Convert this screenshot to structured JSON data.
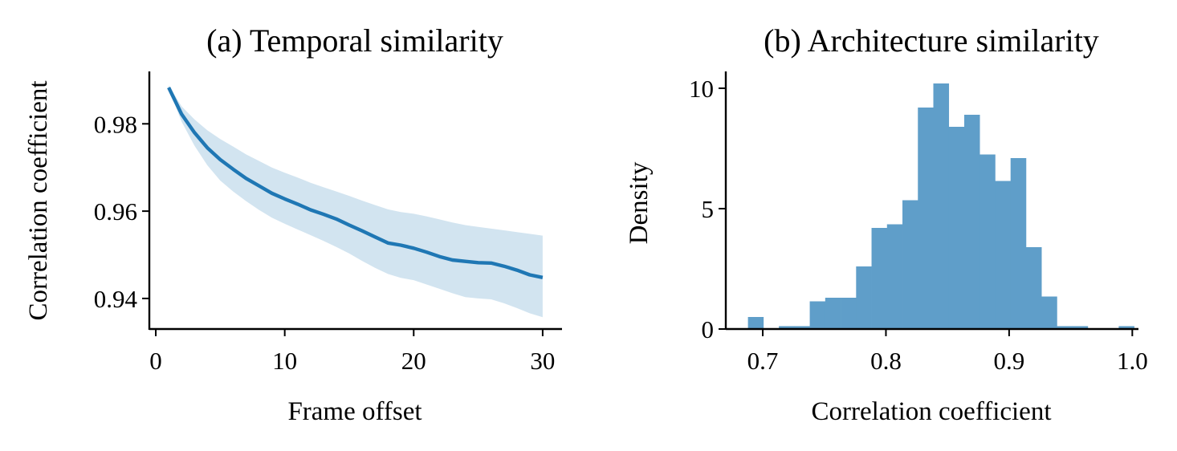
{
  "chart_data": [
    {
      "type": "line",
      "title": "(a) Temporal similarity",
      "xlabel": "Frame offset",
      "ylabel": "Correlation coefficient",
      "xlim": [
        -0.5,
        31.5
      ],
      "ylim": [
        0.933,
        0.992
      ],
      "xticks": [
        0,
        10,
        20,
        30
      ],
      "xtick_labels": [
        "0",
        "10",
        "20",
        "30"
      ],
      "yticks": [
        0.94,
        0.96,
        0.98
      ],
      "ytick_labels": [
        "0.94",
        "0.96",
        "0.98"
      ],
      "grid": false,
      "line_color": "#1f77b4",
      "band_color": "#1f77b4",
      "series": [
        {
          "name": "mean",
          "x": [
            1,
            2,
            3,
            4,
            5,
            6,
            7,
            8,
            9,
            10,
            11,
            12,
            13,
            14,
            15,
            16,
            17,
            18,
            19,
            20,
            21,
            22,
            23,
            24,
            25,
            26,
            27,
            28,
            29,
            30
          ],
          "values": [
            0.9883,
            0.9822,
            0.978,
            0.9745,
            0.9718,
            0.9696,
            0.9675,
            0.9658,
            0.9641,
            0.9628,
            0.9616,
            0.9603,
            0.9593,
            0.9582,
            0.9568,
            0.9555,
            0.9541,
            0.9527,
            0.9522,
            0.9515,
            0.9506,
            0.9496,
            0.9488,
            0.9485,
            0.9482,
            0.9481,
            0.9474,
            0.9465,
            0.9454,
            0.9448
          ],
          "lower": [
            0.988,
            0.9805,
            0.975,
            0.9705,
            0.967,
            0.9645,
            0.9623,
            0.9603,
            0.9585,
            0.9571,
            0.9558,
            0.9545,
            0.9532,
            0.9518,
            0.9503,
            0.9486,
            0.947,
            0.9456,
            0.9447,
            0.9442,
            0.9432,
            0.9422,
            0.9412,
            0.9403,
            0.94,
            0.9398,
            0.9389,
            0.9378,
            0.9366,
            0.9357
          ],
          "upper": [
            0.9888,
            0.984,
            0.981,
            0.9785,
            0.9765,
            0.9748,
            0.973,
            0.9715,
            0.97,
            0.9688,
            0.9677,
            0.9665,
            0.9655,
            0.9645,
            0.9635,
            0.9624,
            0.9614,
            0.9604,
            0.9598,
            0.9594,
            0.9588,
            0.9581,
            0.9574,
            0.9568,
            0.9564,
            0.956,
            0.9556,
            0.9552,
            0.9548,
            0.9544
          ]
        }
      ]
    },
    {
      "type": "bar",
      "subtype": "histogram",
      "title": "(b) Architecture similarity",
      "xlabel": "Correlation coefficient",
      "ylabel": "Density",
      "xlim": [
        0.67,
        1.005
      ],
      "ylim": [
        0,
        10.7
      ],
      "xticks": [
        0.7,
        0.8,
        0.9,
        1.0
      ],
      "xtick_labels": [
        "0.7",
        "0.8",
        "0.9",
        "1.0"
      ],
      "yticks": [
        0,
        5,
        10
      ],
      "ytick_labels": [
        "0",
        "5",
        "10"
      ],
      "grid": false,
      "bar_color": "#5f9ec9",
      "bins_start": 0.688,
      "bin_width": 0.01254,
      "values": [
        0.5,
        0,
        0.12,
        0.12,
        1.15,
        1.3,
        1.3,
        2.6,
        4.2,
        4.35,
        5.35,
        9.2,
        10.2,
        8.4,
        8.9,
        7.25,
        6.15,
        7.1,
        3.4,
        1.35,
        0.12,
        0.12,
        0,
        0,
        0.12
      ]
    }
  ]
}
